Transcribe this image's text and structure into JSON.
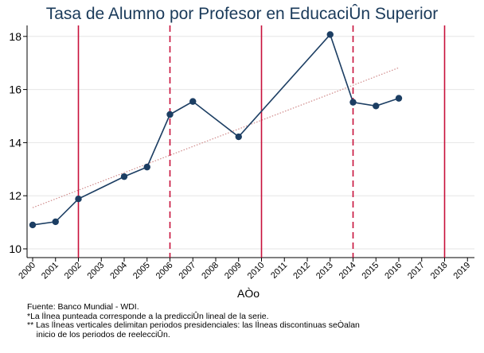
{
  "chart_data": {
    "type": "line",
    "title": "Tasa de Alumno por Profesor en EducaciÛn Superior",
    "xlabel": "AÒo",
    "ylabel": "",
    "x_ticks": [
      "2000",
      "2001",
      "2002",
      "2003",
      "2004",
      "2005",
      "2006",
      "2007",
      "2008",
      "2009",
      "2010",
      "2011",
      "2012",
      "2013",
      "2014",
      "2015",
      "2016",
      "2017",
      "2018",
      "2019"
    ],
    "xlim": [
      2000,
      2019
    ],
    "y_ticks": [
      "10",
      "12",
      "14",
      "16",
      "18"
    ],
    "ylim": [
      9.8,
      18.3
    ],
    "grid": true,
    "series": [
      {
        "x": [
          2000,
          2001,
          2002,
          2004,
          2005,
          2006,
          2007,
          2009,
          2013,
          2014,
          2015,
          2016
        ],
        "y": [
          10.9,
          11.02,
          11.88,
          12.72,
          13.08,
          15.06,
          15.55,
          14.22,
          18.07,
          15.52,
          15.38,
          15.67
        ],
        "color": "#1c3e63"
      }
    ],
    "trend_line": {
      "x": [
        2000,
        2016
      ],
      "y": [
        11.55,
        16.82
      ],
      "color": "#d08a8a",
      "style": "dotted"
    },
    "vlines": [
      {
        "x": 2002,
        "style": "solid"
      },
      {
        "x": 2006,
        "style": "dashed"
      },
      {
        "x": 2010,
        "style": "solid"
      },
      {
        "x": 2014,
        "style": "dashed"
      },
      {
        "x": 2018,
        "style": "solid"
      }
    ],
    "vline_color": "#c8103a"
  },
  "notes": [
    "Fuente: Banco Mundial - WDI.",
    "*La lÌnea punteada corresponde a la predicciÛn lineal de la serie.",
    "** Las lÌneas verticales delimitan periodos presidenciales: las lÌneas discontinuas seÒalan",
    "    inicio de los periodos de reelecciÛn."
  ]
}
